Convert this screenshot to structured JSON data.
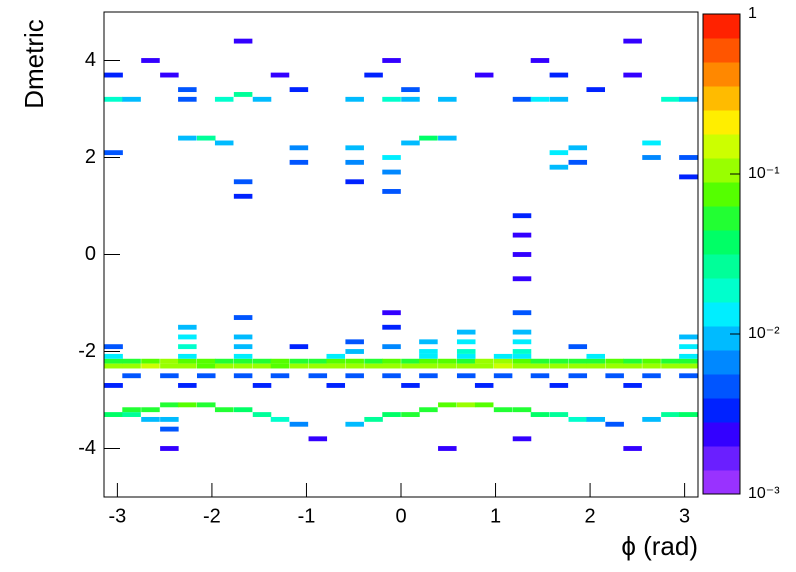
{
  "chart_data": {
    "type": "heatmap",
    "x_label": "ϕ (rad)",
    "y_label": "Dmetric",
    "xlim": [
      -3.1416,
      3.1416
    ],
    "ylim": [
      -5,
      5
    ],
    "xticks": [
      -3,
      -2,
      -1,
      0,
      1,
      2,
      3
    ],
    "yticks": [
      -4,
      -2,
      0,
      2,
      4
    ],
    "xbin": 0.196,
    "ybin": 0.1,
    "zlim": [
      0.001,
      1
    ],
    "zlog": true,
    "zticks": [
      {
        "value": 1,
        "label": "1"
      },
      {
        "value": 0.1,
        "label": "10⁻¹"
      },
      {
        "value": 0.01,
        "label": "10⁻²"
      },
      {
        "value": 0.001,
        "label": "10⁻³"
      }
    ],
    "palette": [
      "#9932ff",
      "#6a1fff",
      "#3300ff",
      "#0022ff",
      "#0055ff",
      "#0088ff",
      "#00bbff",
      "#00eeff",
      "#00ffcc",
      "#00ff99",
      "#00ff66",
      "#22ff33",
      "#55ff00",
      "#99ff00",
      "#ccff00",
      "#ffee00",
      "#ffbb00",
      "#ff8800",
      "#ff5500",
      "#ff2200"
    ],
    "cells": [
      [
        -3.04,
        -2.2,
        0.05
      ],
      [
        -2.85,
        -2.2,
        0.06
      ],
      [
        -2.65,
        -2.2,
        0.08
      ],
      [
        -2.45,
        -2.2,
        0.1
      ],
      [
        -2.26,
        -2.2,
        0.08
      ],
      [
        -2.06,
        -2.2,
        0.07
      ],
      [
        -1.87,
        -2.2,
        0.06
      ],
      [
        -1.67,
        -2.2,
        0.05
      ],
      [
        -1.47,
        -2.2,
        0.06
      ],
      [
        -1.28,
        -2.2,
        0.07
      ],
      [
        -1.08,
        -2.2,
        0.05
      ],
      [
        -0.88,
        -2.2,
        0.06
      ],
      [
        -0.69,
        -2.2,
        0.07
      ],
      [
        -0.49,
        -2.2,
        0.08
      ],
      [
        -0.29,
        -2.2,
        0.06
      ],
      [
        -0.1,
        -2.2,
        0.07
      ],
      [
        0.1,
        -2.2,
        0.06
      ],
      [
        0.29,
        -2.2,
        0.08
      ],
      [
        0.49,
        -2.2,
        0.07
      ],
      [
        0.69,
        -2.2,
        0.06
      ],
      [
        0.88,
        -2.2,
        0.09
      ],
      [
        1.08,
        -2.2,
        0.1
      ],
      [
        1.28,
        -2.2,
        0.08
      ],
      [
        1.47,
        -2.2,
        0.06
      ],
      [
        1.67,
        -2.2,
        0.05
      ],
      [
        1.87,
        -2.2,
        0.06
      ],
      [
        2.06,
        -2.2,
        0.05
      ],
      [
        2.26,
        -2.2,
        0.07
      ],
      [
        2.45,
        -2.2,
        0.06
      ],
      [
        2.65,
        -2.2,
        0.08
      ],
      [
        2.85,
        -2.2,
        0.06
      ],
      [
        3.04,
        -2.2,
        0.05
      ],
      [
        -3.04,
        -2.3,
        0.1
      ],
      [
        -2.85,
        -2.3,
        0.12
      ],
      [
        -2.65,
        -2.3,
        0.15
      ],
      [
        -2.45,
        -2.3,
        0.12
      ],
      [
        -2.26,
        -2.3,
        0.1
      ],
      [
        -2.06,
        -2.3,
        0.08
      ],
      [
        -1.87,
        -2.3,
        0.1
      ],
      [
        -1.67,
        -2.3,
        0.09
      ],
      [
        -1.47,
        -2.3,
        0.1
      ],
      [
        -1.28,
        -2.3,
        0.08
      ],
      [
        -1.08,
        -2.3,
        0.09
      ],
      [
        -0.88,
        -2.3,
        0.1
      ],
      [
        -0.69,
        -2.3,
        0.11
      ],
      [
        -0.49,
        -2.3,
        0.1
      ],
      [
        -0.29,
        -2.3,
        0.09
      ],
      [
        -0.1,
        -2.3,
        0.12
      ],
      [
        0.1,
        -2.3,
        0.1
      ],
      [
        0.29,
        -2.3,
        0.12
      ],
      [
        0.49,
        -2.3,
        0.11
      ],
      [
        0.69,
        -2.3,
        0.1
      ],
      [
        0.88,
        -2.3,
        0.12
      ],
      [
        1.08,
        -2.3,
        0.13
      ],
      [
        1.28,
        -2.3,
        0.12
      ],
      [
        1.47,
        -2.3,
        0.1
      ],
      [
        1.67,
        -2.3,
        0.09
      ],
      [
        1.87,
        -2.3,
        0.1
      ],
      [
        2.06,
        -2.3,
        0.11
      ],
      [
        2.26,
        -2.3,
        0.12
      ],
      [
        2.45,
        -2.3,
        0.1
      ],
      [
        2.65,
        -2.3,
        0.12
      ],
      [
        2.85,
        -2.3,
        0.11
      ],
      [
        3.04,
        -2.3,
        0.1
      ],
      [
        -3.04,
        -2.1,
        0.015
      ],
      [
        -2.26,
        -2.1,
        0.015
      ],
      [
        -1.67,
        -2.1,
        0.015
      ],
      [
        -0.69,
        -2.1,
        0.015
      ],
      [
        0.29,
        -2.1,
        0.015
      ],
      [
        0.69,
        -2.1,
        0.015
      ],
      [
        1.08,
        -2.1,
        0.015
      ],
      [
        1.28,
        -2.1,
        0.015
      ],
      [
        2.06,
        -2.1,
        0.015
      ],
      [
        3.04,
        -2.1,
        0.015
      ],
      [
        -2.85,
        -2.5,
        0.005
      ],
      [
        -2.45,
        -2.5,
        0.005
      ],
      [
        -2.06,
        -2.5,
        0.005
      ],
      [
        -1.67,
        -2.5,
        0.005
      ],
      [
        -1.28,
        -2.5,
        0.005
      ],
      [
        -0.88,
        -2.5,
        0.005
      ],
      [
        -0.49,
        -2.5,
        0.005
      ],
      [
        -0.1,
        -2.5,
        0.005
      ],
      [
        0.29,
        -2.5,
        0.005
      ],
      [
        0.69,
        -2.5,
        0.005
      ],
      [
        1.08,
        -2.5,
        0.005
      ],
      [
        1.47,
        -2.5,
        0.005
      ],
      [
        1.87,
        -2.5,
        0.005
      ],
      [
        2.26,
        -2.5,
        0.005
      ],
      [
        2.65,
        -2.5,
        0.005
      ],
      [
        3.04,
        -2.5,
        0.005
      ],
      [
        -3.04,
        -2.7,
        0.003
      ],
      [
        -2.26,
        -2.7,
        0.003
      ],
      [
        -1.47,
        -2.7,
        0.003
      ],
      [
        -0.69,
        -2.7,
        0.003
      ],
      [
        0.1,
        -2.7,
        0.003
      ],
      [
        0.88,
        -2.7,
        0.003
      ],
      [
        1.67,
        -2.7,
        0.003
      ],
      [
        2.45,
        -2.7,
        0.003
      ],
      [
        -3.04,
        -3.3,
        0.04
      ],
      [
        -2.85,
        -3.3,
        0.03
      ],
      [
        -2.85,
        -3.2,
        0.05
      ],
      [
        -2.65,
        -3.2,
        0.06
      ],
      [
        -2.45,
        -3.1,
        0.06
      ],
      [
        -2.26,
        -3.1,
        0.07
      ],
      [
        -2.06,
        -3.1,
        0.06
      ],
      [
        -1.87,
        -3.2,
        0.05
      ],
      [
        -1.67,
        -3.2,
        0.04
      ],
      [
        -1.47,
        -3.3,
        0.03
      ],
      [
        -1.28,
        -3.4,
        0.02
      ],
      [
        -1.08,
        -3.5,
        0.006
      ],
      [
        -2.65,
        -3.4,
        0.01
      ],
      [
        -2.45,
        -3.4,
        0.008
      ],
      [
        -2.45,
        -3.6,
        0.004
      ],
      [
        -0.49,
        -3.5,
        0.01
      ],
      [
        -0.29,
        -3.4,
        0.03
      ],
      [
        -0.1,
        -3.3,
        0.04
      ],
      [
        0.1,
        -3.3,
        0.05
      ],
      [
        0.29,
        -3.2,
        0.06
      ],
      [
        0.49,
        -3.1,
        0.08
      ],
      [
        0.69,
        -3.1,
        0.09
      ],
      [
        0.88,
        -3.1,
        0.07
      ],
      [
        1.08,
        -3.2,
        0.06
      ],
      [
        1.28,
        -3.2,
        0.05
      ],
      [
        1.47,
        -3.3,
        0.04
      ],
      [
        1.67,
        -3.3,
        0.03
      ],
      [
        1.87,
        -3.4,
        0.02
      ],
      [
        2.06,
        -3.4,
        0.01
      ],
      [
        2.26,
        -3.5,
        0.005
      ],
      [
        2.85,
        -3.3,
        0.03
      ],
      [
        3.04,
        -3.3,
        0.04
      ],
      [
        2.65,
        -3.4,
        0.008
      ],
      [
        -2.45,
        -4.0,
        0.002
      ],
      [
        0.49,
        -4.0,
        0.002
      ],
      [
        2.45,
        -4.0,
        0.002
      ],
      [
        -0.88,
        -3.8,
        0.002
      ],
      [
        1.28,
        -3.8,
        0.002
      ],
      [
        -2.26,
        -1.9,
        0.02
      ],
      [
        -2.26,
        -1.7,
        0.015
      ],
      [
        -2.26,
        -1.5,
        0.008
      ],
      [
        -1.67,
        -1.9,
        0.01
      ],
      [
        -1.67,
        -1.7,
        0.008
      ],
      [
        -1.67,
        -1.3,
        0.004
      ],
      [
        -0.49,
        -2.0,
        0.01
      ],
      [
        -0.49,
        -1.8,
        0.005
      ],
      [
        -0.1,
        -1.9,
        0.006
      ],
      [
        -0.1,
        -1.5,
        0.003
      ],
      [
        -0.1,
        -1.2,
        0.002
      ],
      [
        0.29,
        -2.0,
        0.015
      ],
      [
        0.29,
        -1.8,
        0.008
      ],
      [
        0.69,
        -2.0,
        0.02
      ],
      [
        0.69,
        -1.8,
        0.015
      ],
      [
        0.69,
        -1.6,
        0.008
      ],
      [
        1.28,
        -2.0,
        0.02
      ],
      [
        1.28,
        -1.8,
        0.015
      ],
      [
        1.28,
        -1.6,
        0.01
      ],
      [
        1.28,
        -1.2,
        0.004
      ],
      [
        1.28,
        -0.5,
        0.002
      ],
      [
        1.28,
        0,
        0.002
      ],
      [
        3.04,
        -1.9,
        0.015
      ],
      [
        3.04,
        -1.7,
        0.01
      ],
      [
        -3.04,
        -1.9,
        0.005
      ],
      [
        1.87,
        -1.9,
        0.004
      ],
      [
        -1.08,
        -1.9,
        0.003
      ],
      [
        -3.04,
        3.2,
        0.02
      ],
      [
        -2.85,
        3.2,
        0.01
      ],
      [
        -1.87,
        3.2,
        0.02
      ],
      [
        -1.67,
        3.3,
        0.03
      ],
      [
        -1.47,
        3.2,
        0.01
      ],
      [
        -0.49,
        3.2,
        0.01
      ],
      [
        -0.1,
        3.2,
        0.02
      ],
      [
        0.1,
        3.2,
        0.01
      ],
      [
        0.49,
        3.2,
        0.008
      ],
      [
        1.28,
        3.2,
        0.005
      ],
      [
        1.47,
        3.2,
        0.015
      ],
      [
        1.67,
        3.2,
        0.01
      ],
      [
        2.85,
        3.2,
        0.02
      ],
      [
        3.04,
        3.2,
        0.01
      ],
      [
        -2.26,
        3.2,
        0.005
      ],
      [
        -2.26,
        3.4,
        0.004
      ],
      [
        -1.08,
        3.4,
        0.003
      ],
      [
        0.1,
        3.4,
        0.004
      ],
      [
        2.06,
        3.4,
        0.003
      ],
      [
        -3.04,
        3.7,
        0.003
      ],
      [
        -2.45,
        3.7,
        0.002
      ],
      [
        -1.28,
        3.7,
        0.002
      ],
      [
        -0.29,
        3.7,
        0.003
      ],
      [
        0.88,
        3.7,
        0.002
      ],
      [
        1.67,
        3.7,
        0.003
      ],
      [
        2.45,
        3.7,
        0.002
      ],
      [
        -2.65,
        4.0,
        0.002
      ],
      [
        -0.1,
        4.0,
        0.002
      ],
      [
        1.47,
        4.0,
        0.002
      ],
      [
        -1.67,
        4.4,
        0.002
      ],
      [
        2.45,
        4.4,
        0.002
      ],
      [
        -2.06,
        2.4,
        0.03
      ],
      [
        -2.26,
        2.4,
        0.01
      ],
      [
        0.29,
        2.4,
        0.04
      ],
      [
        0.49,
        2.4,
        0.01
      ],
      [
        -1.87,
        2.3,
        0.008
      ],
      [
        0.1,
        2.3,
        0.01
      ],
      [
        -1.08,
        2.2,
        0.006
      ],
      [
        -1.08,
        1.9,
        0.004
      ],
      [
        -0.49,
        2.2,
        0.01
      ],
      [
        -0.49,
        1.9,
        0.006
      ],
      [
        -0.49,
        1.5,
        0.003
      ],
      [
        -0.1,
        2.0,
        0.015
      ],
      [
        -0.1,
        1.7,
        0.006
      ],
      [
        -0.1,
        1.3,
        0.004
      ],
      [
        1.67,
        2.1,
        0.015
      ],
      [
        1.67,
        1.8,
        0.008
      ],
      [
        1.87,
        2.2,
        0.008
      ],
      [
        1.87,
        1.9,
        0.004
      ],
      [
        2.65,
        2.3,
        0.015
      ],
      [
        2.65,
        2.0,
        0.006
      ],
      [
        3.04,
        2.0,
        0.005
      ],
      [
        3.04,
        1.6,
        0.003
      ],
      [
        -1.67,
        1.5,
        0.005
      ],
      [
        -1.67,
        1.2,
        0.003
      ],
      [
        -3.04,
        2.1,
        0.004
      ],
      [
        1.28,
        0.8,
        0.003
      ],
      [
        1.28,
        0.4,
        0.002
      ]
    ]
  }
}
